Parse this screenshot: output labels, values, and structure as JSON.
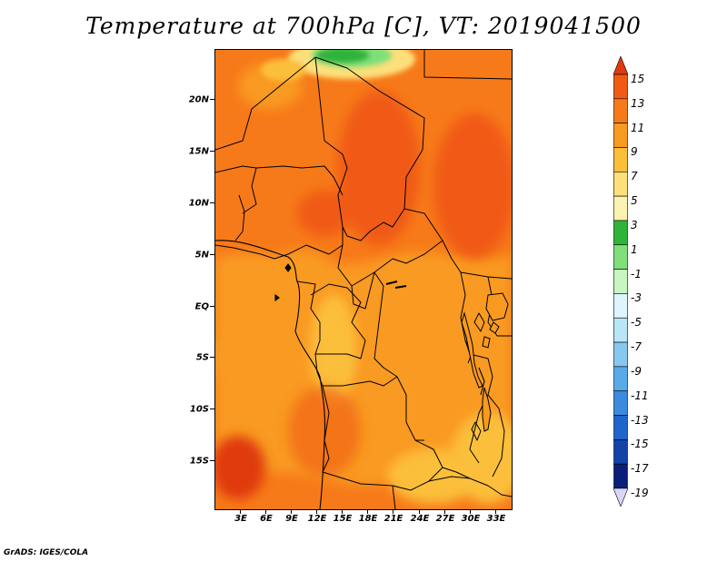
{
  "title": "Temperature at 700hPa [C], VT: 2019041500",
  "footer": "GrADS: IGES/COLA",
  "axes": {
    "y_ticks": [
      "20N",
      "15N",
      "10N",
      "5N",
      "EQ",
      "5S",
      "10S",
      "15S"
    ],
    "x_ticks": [
      "3E",
      "6E",
      "9E",
      "12E",
      "15E",
      "18E",
      "21E",
      "24E",
      "27E",
      "30E",
      "33E"
    ]
  },
  "colorbar": {
    "labels": [
      "15",
      "13",
      "11",
      "9",
      "7",
      "5",
      "3",
      "1",
      "-1",
      "-3",
      "-5",
      "-7",
      "-9",
      "-11",
      "-13",
      "-15",
      "-17",
      "-19"
    ],
    "colors": [
      "#e03a10",
      "#f05a14",
      "#f77a1a",
      "#f99a20",
      "#fbbf3a",
      "#fde07a",
      "#fdf3b0",
      "#2fb43a",
      "#7fe07a",
      "#c8f5c0",
      "#e0f5fb",
      "#b9e6f7",
      "#87c8f1",
      "#5aaaea",
      "#3a8ae0",
      "#1f65cc",
      "#1342a8",
      "#0a1f7a",
      "#061068"
    ],
    "top_arrow_color": "#e03a10",
    "bottom_arrow_color": "#d8d8f5"
  }
}
